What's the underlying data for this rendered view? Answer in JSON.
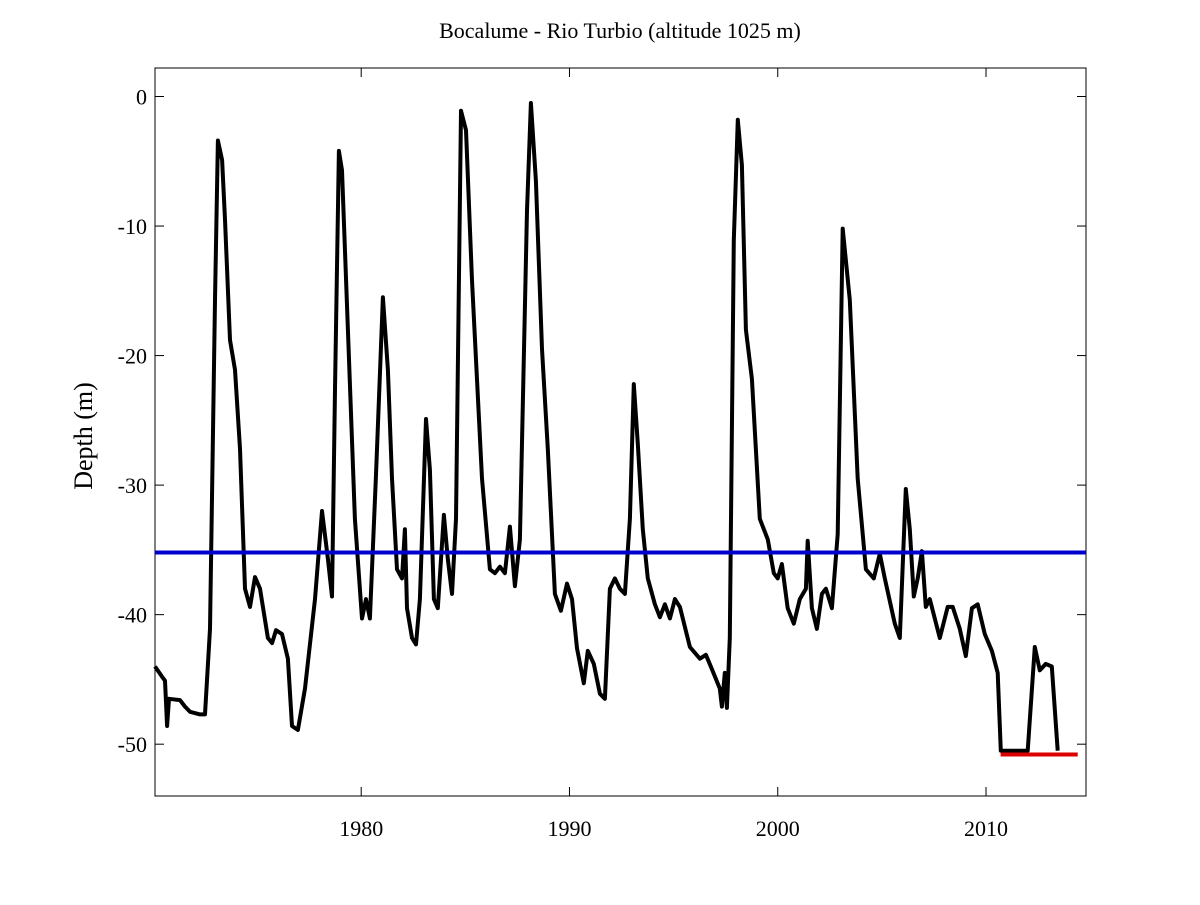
{
  "chart_data": {
    "type": "line",
    "title": "Bocalume - Rio Turbio (altitude 1025 m)",
    "y_label": "Depth (m)",
    "xlim": [
      1970.1,
      2014.8
    ],
    "ylim": [
      -54,
      2.2
    ],
    "xticks": [
      1980,
      1990,
      2000,
      2010
    ],
    "yticks": [
      -50,
      -40,
      -30,
      -20,
      -10,
      0
    ],
    "grid": false,
    "series": [
      {
        "color": "#000000",
        "x": [
          1970.1,
          1970.44,
          1970.58,
          1970.68,
          1970.77,
          1971.3,
          1971.54,
          1971.78,
          1972.26,
          1972.5,
          1972.74,
          1972.98,
          1973.12,
          1973.32,
          1973.46,
          1973.7,
          1973.94,
          1974.18,
          1974.42,
          1974.66,
          1974.9,
          1975.14,
          1975.52,
          1975.72,
          1975.91,
          1976.2,
          1976.48,
          1976.68,
          1976.96,
          1977.3,
          1977.78,
          1978.12,
          1978.4,
          1978.6,
          1978.74,
          1978.93,
          1979.08,
          1979.36,
          1979.7,
          1980.04,
          1980.23,
          1980.42,
          1980.71,
          1981.04,
          1981.28,
          1981.48,
          1981.72,
          1981.96,
          1982.1,
          1982.2,
          1982.44,
          1982.63,
          1982.82,
          1983.11,
          1983.3,
          1983.49,
          1983.68,
          1983.97,
          1984.16,
          1984.36,
          1984.55,
          1984.79,
          1985.03,
          1985.32,
          1985.8,
          1986.18,
          1986.42,
          1986.66,
          1986.9,
          1987.14,
          1987.38,
          1987.62,
          1987.96,
          1988.15,
          1988.39,
          1988.68,
          1988.96,
          1989.3,
          1989.59,
          1989.88,
          1990.12,
          1990.36,
          1990.69,
          1990.88,
          1991.17,
          1991.46,
          1991.7,
          1991.94,
          1992.18,
          1992.42,
          1992.66,
          1992.9,
          1993.09,
          1993.28,
          1993.52,
          1993.76,
          1994.1,
          1994.34,
          1994.58,
          1994.82,
          1995.06,
          1995.3,
          1995.78,
          1996.26,
          1996.55,
          1996.84,
          1997.22,
          1997.32,
          1997.46,
          1997.56,
          1997.7,
          1997.89,
          1998.08,
          1998.28,
          1998.47,
          1998.76,
          1999.14,
          1999.52,
          1999.81,
          2000.0,
          2000.2,
          2000.48,
          2000.77,
          2001.06,
          2001.35,
          2001.44,
          2001.64,
          2001.88,
          2002.12,
          2002.31,
          2002.6,
          2002.88,
          2003.12,
          2003.46,
          2003.84,
          2004.23,
          2004.61,
          2004.9,
          2005.14,
          2005.62,
          2005.86,
          2006.15,
          2006.34,
          2006.53,
          2006.72,
          2006.92,
          2007.11,
          2007.3,
          2007.78,
          2008.16,
          2008.4,
          2008.74,
          2009.03,
          2009.32,
          2009.6,
          2009.94,
          2010.28,
          2010.56,
          2010.71,
          2012.0,
          2012.34,
          2012.58,
          2012.87,
          2013.16,
          2013.44
        ],
        "values": [
          -44.0,
          -44.8,
          -45.1,
          -48.6,
          -46.5,
          -46.6,
          -47.1,
          -47.5,
          -47.7,
          -47.7,
          -41.1,
          -15.7,
          -3.4,
          -4.9,
          -9.5,
          -18.8,
          -21.1,
          -27.2,
          -38.0,
          -39.4,
          -37.1,
          -38.0,
          -41.8,
          -42.2,
          -41.2,
          -41.5,
          -43.4,
          -48.6,
          -48.9,
          -45.7,
          -38.8,
          -32.0,
          -35.7,
          -38.6,
          -22.6,
          -4.2,
          -5.7,
          -18.0,
          -32.6,
          -40.3,
          -38.8,
          -40.3,
          -29.2,
          -15.5,
          -21.1,
          -29.5,
          -36.5,
          -37.2,
          -33.4,
          -39.5,
          -41.8,
          -42.3,
          -38.8,
          -24.9,
          -28.8,
          -38.8,
          -39.5,
          -32.3,
          -35.7,
          -38.4,
          -32.6,
          -1.1,
          -2.6,
          -14.2,
          -29.5,
          -36.5,
          -36.8,
          -36.3,
          -36.8,
          -33.2,
          -37.8,
          -34.2,
          -8.8,
          -0.5,
          -6.5,
          -19.5,
          -27.2,
          -38.4,
          -39.7,
          -37.6,
          -38.8,
          -42.6,
          -45.3,
          -42.8,
          -43.8,
          -46.1,
          -46.5,
          -38.0,
          -37.2,
          -38.0,
          -38.4,
          -32.6,
          -22.2,
          -26.8,
          -33.4,
          -37.2,
          -39.2,
          -40.2,
          -39.2,
          -40.3,
          -38.8,
          -39.4,
          -42.5,
          -43.4,
          -43.1,
          -44.2,
          -45.7,
          -47.1,
          -44.5,
          -47.2,
          -41.8,
          -11.1,
          -1.8,
          -5.3,
          -18.0,
          -21.8,
          -32.6,
          -34.2,
          -36.8,
          -37.2,
          -36.1,
          -39.5,
          -40.7,
          -38.8,
          -38.0,
          -34.3,
          -39.5,
          -41.1,
          -38.4,
          -38.0,
          -39.5,
          -33.8,
          -10.2,
          -15.7,
          -29.5,
          -36.5,
          -37.2,
          -35.3,
          -37.2,
          -40.7,
          -41.8,
          -30.3,
          -33.4,
          -38.6,
          -37.2,
          -35.1,
          -39.4,
          -38.8,
          -41.8,
          -39.4,
          -39.4,
          -41.1,
          -43.2,
          -39.5,
          -39.2,
          -41.5,
          -42.8,
          -44.5,
          -50.5,
          -50.5,
          -42.5,
          -44.3,
          -43.8,
          -44.0,
          -50.5
        ]
      },
      {
        "color": "#0000cc",
        "x": [
          1970.1,
          2014.8
        ],
        "values": [
          -35.2,
          -35.2
        ]
      },
      {
        "color": "#dd0000",
        "x": [
          2010.7,
          2014.4
        ],
        "values": [
          -50.8,
          -50.8
        ]
      }
    ]
  }
}
